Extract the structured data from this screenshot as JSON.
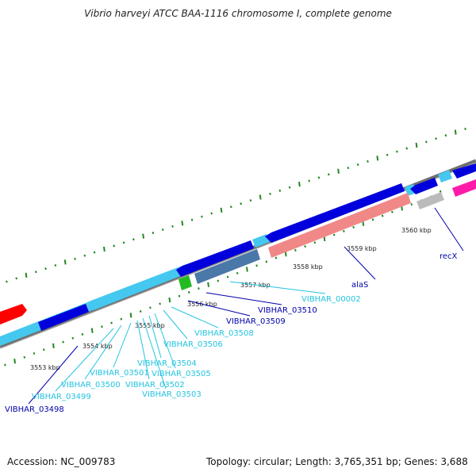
{
  "title": "Vibrio harveyi ATCC BAA-1116 chromosome I, complete genome",
  "footer": {
    "accession_label": "Accession:",
    "accession": "NC_009783",
    "topology_label": "Topology:",
    "topology": "circular",
    "length_label": "Length:",
    "length": "3,765,351 bp",
    "genes_label": "Genes:",
    "genes": "3,688"
  },
  "colors": {
    "backbone": "#7f7f7f",
    "cds_dark": "#0000dd",
    "cds_light": "#44c8f0",
    "trna": "#22bb22",
    "rrna": "#4a78a8",
    "alaS": "#f08888",
    "recX": "#bbbbbb",
    "magenta": "#ff1aa8",
    "red": "#ff0000",
    "tick": "#228822",
    "label_dark": "#0000aa",
    "label_light": "#22c4e0"
  },
  "scale": {
    "ticks": [
      {
        "label": "3553 kbp"
      },
      {
        "label": "3554 kbp"
      },
      {
        "label": "3555 kbp"
      },
      {
        "label": "3556 kbp"
      },
      {
        "label": "3557 kbp"
      },
      {
        "label": "3558 kbp"
      },
      {
        "label": "3559 kbp"
      },
      {
        "label": "3560 kbp"
      }
    ]
  },
  "genes": [
    {
      "name": "VIBHAR_03498",
      "color": "dark"
    },
    {
      "name": "VIBHAR_03499",
      "color": "light"
    },
    {
      "name": "VIBHAR_03500",
      "color": "light"
    },
    {
      "name": "VIBHAR_03501",
      "color": "light"
    },
    {
      "name": "VIBHAR_03502",
      "color": "light"
    },
    {
      "name": "VIBHAR_03503",
      "color": "light"
    },
    {
      "name": "VIBHAR_03504",
      "color": "light"
    },
    {
      "name": "VIBHAR_03505",
      "color": "light"
    },
    {
      "name": "VIBHAR_03506",
      "color": "light"
    },
    {
      "name": "VIBHAR_03508",
      "color": "light"
    },
    {
      "name": "VIBHAR_03509",
      "color": "dark"
    },
    {
      "name": "VIBHAR_03510",
      "color": "dark"
    },
    {
      "name": "VIBHAR_00002",
      "color": "light"
    },
    {
      "name": "alaS",
      "color": "dark"
    },
    {
      "name": "recX",
      "color": "dark"
    }
  ]
}
